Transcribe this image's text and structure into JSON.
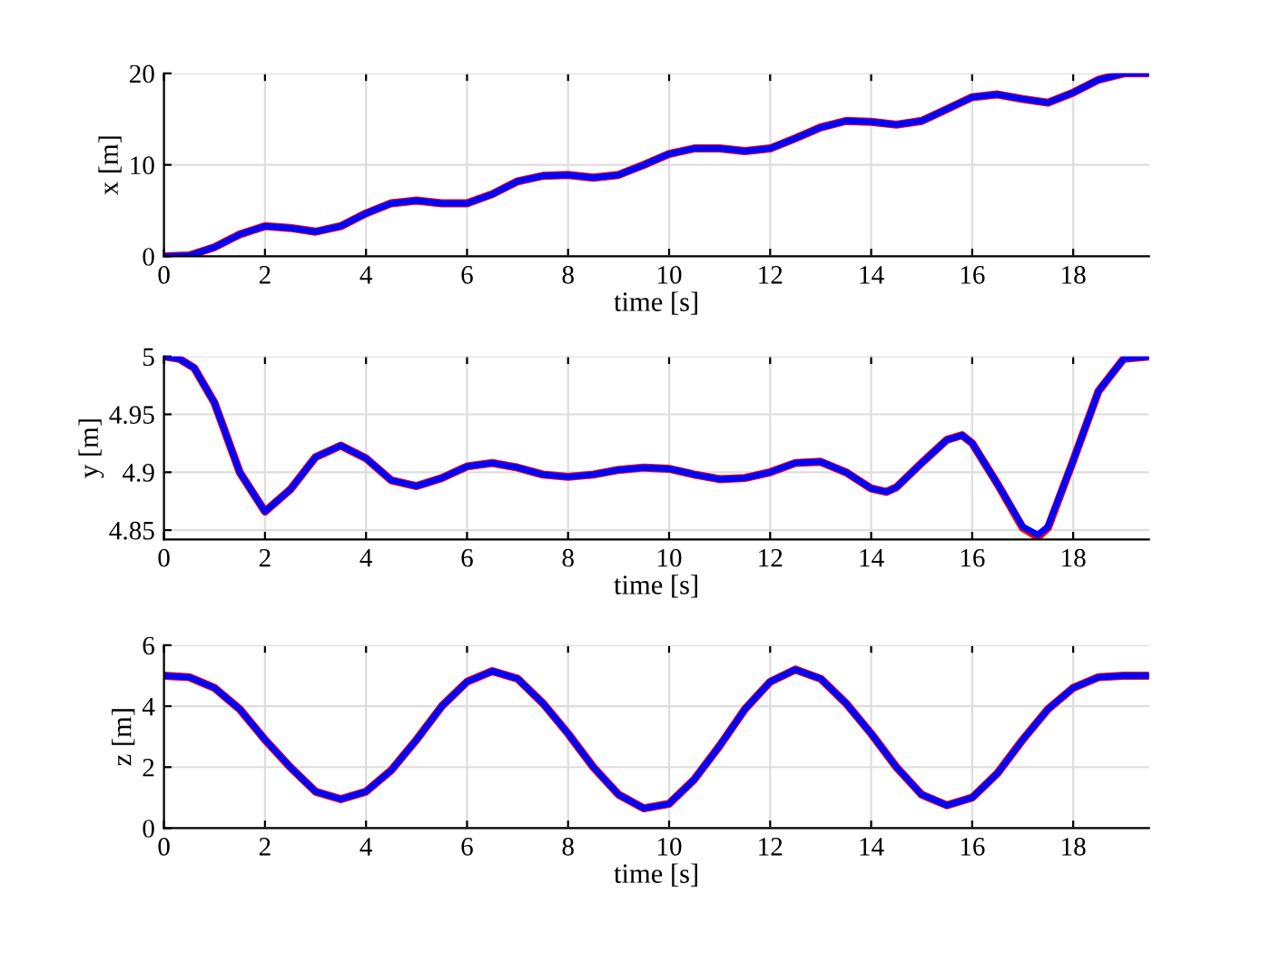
{
  "chart_data": [
    {
      "type": "line",
      "xlabel": "time [s]",
      "ylabel": "x [m]",
      "xlim": [
        0,
        19.5
      ],
      "xticks": [
        0,
        2,
        4,
        6,
        8,
        10,
        12,
        14,
        16,
        18
      ],
      "ylim": [
        0,
        20
      ],
      "yticks": [
        0,
        10,
        20
      ],
      "grid": true,
      "x": [
        0,
        0.5,
        1,
        1.5,
        2,
        2.5,
        3,
        3.5,
        4,
        4.5,
        5,
        5.5,
        6,
        6.5,
        7,
        7.5,
        8,
        8.5,
        9,
        9.5,
        10,
        10.5,
        11,
        11.5,
        12,
        12.5,
        13,
        13.5,
        14,
        14.5,
        15,
        15.5,
        16,
        16.5,
        17,
        17.5,
        18,
        18.5,
        19,
        19.5
      ],
      "series": [
        {
          "color": "#ff0000",
          "values": [
            0,
            0.1,
            1.0,
            2.4,
            3.3,
            3.1,
            2.7,
            3.3,
            4.7,
            5.8,
            6.1,
            5.8,
            5.8,
            6.8,
            8.2,
            8.8,
            8.9,
            8.6,
            8.9,
            10.0,
            11.2,
            11.8,
            11.8,
            11.5,
            11.8,
            12.9,
            14.1,
            14.8,
            14.7,
            14.4,
            14.8,
            16.1,
            17.4,
            17.7,
            17.2,
            16.8,
            17.9,
            19.3,
            20.0,
            20.0
          ]
        },
        {
          "color": "#0000ff",
          "values": [
            0,
            0.1,
            1.0,
            2.4,
            3.3,
            3.1,
            2.7,
            3.3,
            4.7,
            5.8,
            6.1,
            5.8,
            5.8,
            6.8,
            8.2,
            8.8,
            8.9,
            8.6,
            8.9,
            10.0,
            11.2,
            11.8,
            11.8,
            11.5,
            11.8,
            12.9,
            14.1,
            14.8,
            14.7,
            14.4,
            14.8,
            16.1,
            17.4,
            17.7,
            17.2,
            16.8,
            17.9,
            19.3,
            20.0,
            20.0
          ]
        }
      ]
    },
    {
      "type": "line",
      "xlabel": "time [s]",
      "ylabel": "y [m]",
      "xlim": [
        0,
        19.5
      ],
      "xticks": [
        0,
        2,
        4,
        6,
        8,
        10,
        12,
        14,
        16,
        18
      ],
      "ylim": [
        4.842,
        5
      ],
      "yticks": [
        4.85,
        4.9,
        4.95,
        5
      ],
      "grid": true,
      "x": [
        0,
        0.3,
        0.6,
        1,
        1.5,
        2,
        2.5,
        3,
        3.5,
        4,
        4.5,
        5,
        5.5,
        6,
        6.5,
        7,
        7.5,
        8,
        8.5,
        9,
        9.5,
        10,
        10.5,
        11,
        11.5,
        12,
        12.5,
        13,
        13.5,
        14,
        14.3,
        14.5,
        15,
        15.5,
        15.8,
        16,
        16.5,
        17,
        17.3,
        17.5,
        18,
        18.5,
        19,
        19.5
      ],
      "series": [
        {
          "color": "#ff0000",
          "values": [
            5.0,
            4.998,
            4.99,
            4.96,
            4.9,
            4.866,
            4.885,
            4.913,
            4.923,
            4.912,
            4.893,
            4.888,
            4.895,
            4.905,
            4.908,
            4.904,
            4.898,
            4.896,
            4.898,
            4.902,
            4.904,
            4.903,
            4.898,
            4.894,
            4.895,
            4.9,
            4.908,
            4.909,
            4.9,
            4.886,
            4.883,
            4.887,
            4.908,
            4.928,
            4.932,
            4.925,
            4.89,
            4.852,
            4.844,
            4.852,
            4.91,
            4.97,
            4.998,
            5.0
          ]
        },
        {
          "color": "#0000ff",
          "values": [
            5.0,
            4.998,
            4.99,
            4.96,
            4.9,
            4.866,
            4.885,
            4.913,
            4.923,
            4.912,
            4.893,
            4.888,
            4.895,
            4.905,
            4.908,
            4.904,
            4.898,
            4.896,
            4.898,
            4.902,
            4.904,
            4.903,
            4.898,
            4.894,
            4.895,
            4.9,
            4.908,
            4.909,
            4.9,
            4.886,
            4.883,
            4.887,
            4.908,
            4.928,
            4.932,
            4.925,
            4.89,
            4.853,
            4.846,
            4.853,
            4.91,
            4.97,
            4.998,
            5.0
          ]
        }
      ]
    },
    {
      "type": "line",
      "xlabel": "time [s]",
      "ylabel": "z [m]",
      "xlim": [
        0,
        19.5
      ],
      "xticks": [
        0,
        2,
        4,
        6,
        8,
        10,
        12,
        14,
        16,
        18
      ],
      "ylim": [
        0,
        6
      ],
      "yticks": [
        0,
        2,
        4,
        6
      ],
      "grid": true,
      "x": [
        0,
        0.5,
        1,
        1.5,
        2,
        2.5,
        3,
        3.5,
        4,
        4.5,
        5,
        5.5,
        6,
        6.5,
        7,
        7.5,
        8,
        8.5,
        9,
        9.5,
        10,
        10.5,
        11,
        11.5,
        12,
        12.5,
        13,
        13.5,
        14,
        14.5,
        15,
        15.5,
        16,
        16.5,
        17,
        17.5,
        18,
        18.5,
        19,
        19.5
      ],
      "series": [
        {
          "color": "#ff0000",
          "values": [
            5.0,
            4.95,
            4.6,
            3.9,
            2.9,
            2.0,
            1.2,
            0.95,
            1.2,
            1.9,
            2.9,
            4.0,
            4.8,
            5.15,
            4.9,
            4.1,
            3.1,
            2.0,
            1.1,
            0.65,
            0.8,
            1.6,
            2.7,
            3.9,
            4.8,
            5.2,
            4.9,
            4.1,
            3.1,
            2.0,
            1.1,
            0.75,
            1.0,
            1.8,
            2.9,
            3.9,
            4.6,
            4.95,
            5.0,
            5.0
          ]
        },
        {
          "color": "#0000ff",
          "values": [
            5.0,
            4.95,
            4.6,
            3.9,
            2.9,
            2.0,
            1.2,
            0.95,
            1.2,
            1.9,
            2.9,
            4.0,
            4.8,
            5.15,
            4.9,
            4.1,
            3.1,
            2.0,
            1.1,
            0.65,
            0.8,
            1.6,
            2.7,
            3.9,
            4.8,
            5.2,
            4.9,
            4.1,
            3.1,
            2.0,
            1.1,
            0.75,
            1.0,
            1.8,
            2.9,
            3.9,
            4.6,
            4.95,
            5.0,
            5.0
          ]
        }
      ]
    }
  ]
}
